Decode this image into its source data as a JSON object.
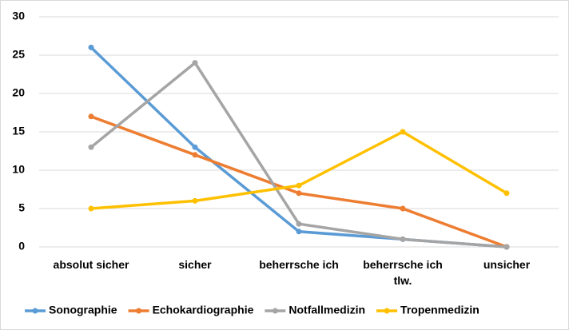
{
  "chart_data": {
    "type": "line",
    "categories": [
      "absolut sicher",
      "sicher",
      "beherrsche ich",
      "beherrsche ich tlw.",
      "unsicher"
    ],
    "series": [
      {
        "name": "Sonographie",
        "color": "#5b9bd5",
        "values": [
          26,
          13,
          2,
          1,
          0
        ]
      },
      {
        "name": "Echokardiographie",
        "color": "#ed7d31",
        "values": [
          17,
          12,
          7,
          5,
          0
        ]
      },
      {
        "name": "Notfallmedizin",
        "color": "#a5a5a5",
        "values": [
          13,
          24,
          3,
          1,
          0
        ]
      },
      {
        "name": "Tropenmedizin",
        "color": "#ffc000",
        "values": [
          5,
          6,
          8,
          15,
          7
        ]
      }
    ],
    "ylim": [
      0,
      30
    ],
    "yticks": [
      0,
      5,
      10,
      15,
      20,
      25,
      30
    ],
    "grid": true,
    "legend": "bottom"
  }
}
